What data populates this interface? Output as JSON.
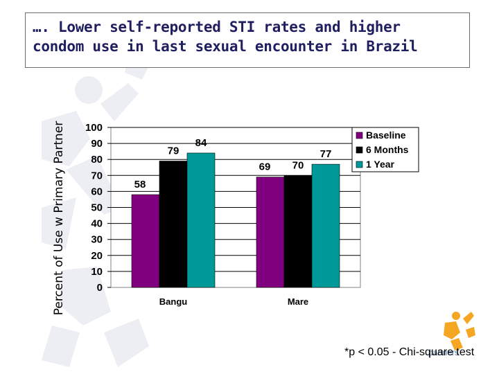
{
  "title": {
    "line1": "…. Lower self-reported STI rates and higher",
    "line2": "condom use in last sexual encounter in Brazil"
  },
  "footnote": "*p < 0.05 - Chi-square test",
  "logo_text": "partners",
  "chart_data": {
    "type": "bar",
    "title": "",
    "ylabel": "Percent of Use w Primary Partner",
    "xlabel": "",
    "categories": [
      "Bangu",
      "Mare"
    ],
    "series": [
      {
        "name": "Baseline",
        "values": [
          58,
          69
        ],
        "color": "#800080"
      },
      {
        "name": "6 Months",
        "values": [
          79,
          70
        ],
        "color": "#000000"
      },
      {
        "name": "1 Year",
        "values": [
          84,
          77
        ],
        "color": "#009999"
      }
    ],
    "ylim": [
      0,
      100
    ],
    "yticks": [
      "0",
      "10",
      "20",
      "30",
      "40",
      "50",
      "60",
      "70",
      "80",
      "90",
      "100"
    ],
    "grid": true,
    "legend": "top-right",
    "data_labels": true
  }
}
